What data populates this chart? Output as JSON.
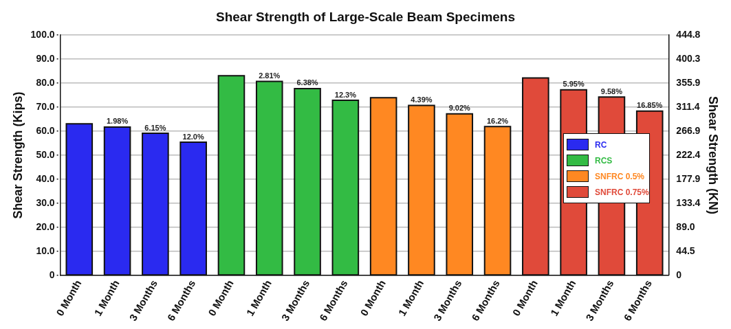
{
  "chart_data": {
    "type": "bar",
    "title": "Shear Strength of Large-Scale Beam Specimens",
    "ylabel": "Shear Strength (Kips)",
    "y2label": "Shear Strength (KN)",
    "categories": [
      "0 Month",
      "1 Month",
      "3 Months",
      "6 Months",
      "0 Month",
      "1 Month",
      "3 Months",
      "6 Months",
      "0 Month",
      "1 Month",
      "3 Months",
      "6 Months",
      "0 Month",
      "1 Month",
      "3 Months",
      "6 Months"
    ],
    "series": [
      {
        "name": "RC",
        "color": "#2a2af0",
        "values": [
          63.0,
          61.7,
          59.1,
          55.4,
          null,
          null,
          null,
          null,
          null,
          null,
          null,
          null,
          null,
          null,
          null,
          null
        ]
      },
      {
        "name": "RCS",
        "color": "#33bb44",
        "values": [
          null,
          null,
          null,
          null,
          83.0,
          80.7,
          77.7,
          72.8,
          null,
          null,
          null,
          null,
          null,
          null,
          null,
          null
        ]
      },
      {
        "name": "SNFRC 0.5%",
        "color": "#ff8822",
        "values": [
          null,
          null,
          null,
          null,
          null,
          null,
          null,
          null,
          73.9,
          70.7,
          67.2,
          61.9,
          null,
          null,
          null,
          null
        ]
      },
      {
        "name": "SNFRC 0.75%",
        "color": "#e04a3a",
        "values": [
          null,
          null,
          null,
          null,
          null,
          null,
          null,
          null,
          null,
          null,
          null,
          null,
          82.1,
          77.2,
          74.2,
          68.3
        ]
      }
    ],
    "annotations": [
      "1.98%",
      "6.15%",
      "12.0%",
      "2.81%",
      "6.38%",
      "12.3%",
      "4.39%",
      "9.02%",
      "16.2%",
      "5.95%",
      "9.58%",
      "16.85%"
    ],
    "ylim": [
      0,
      100
    ],
    "yticks": [
      0,
      {
        "value": 10,
        "label": "10.0"
      },
      {
        "value": 20,
        "label": "20.0"
      },
      {
        "value": 30,
        "label": "30.0"
      },
      {
        "value": 40,
        "label": "40.0"
      },
      {
        "value": 50,
        "label": "50.0"
      },
      {
        "value": 60,
        "label": "60.0"
      },
      {
        "value": 70,
        "label": "70.0"
      },
      {
        "value": 80,
        "label": "80.0"
      },
      {
        "value": 90,
        "label": "90.0"
      },
      {
        "value": 100,
        "label": "100.0"
      }
    ],
    "y2lim": [
      0,
      444.8
    ],
    "y2ticks": [
      0,
      44.5,
      {
        "value": 89,
        "label": "89.0"
      },
      133.4,
      177.9,
      222.4,
      266.9,
      311.4,
      355.9,
      400.3,
      444.8
    ],
    "grid": "y",
    "line_style": "dotted",
    "legend": "right"
  }
}
